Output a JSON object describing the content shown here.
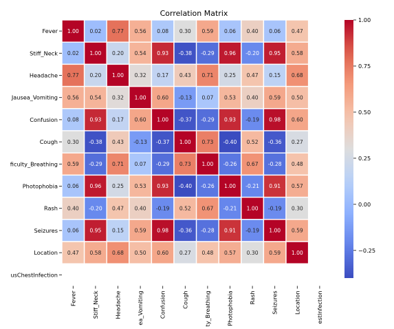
{
  "chart_data": {
    "type": "heatmap",
    "title": "Correlation Matrix",
    "rows": [
      "Fever",
      "Stiff_Neck",
      "Headache",
      "Nausea_Vomiting",
      "Confusion",
      "Cough",
      "Difficulty_Breathing",
      "Photophobia",
      "Rash",
      "Seizures",
      "Location",
      "ObviousChestInfection"
    ],
    "columns": [
      "Fever",
      "Stiff_Neck",
      "Headache",
      "Nausea_Vomiting",
      "Confusion",
      "Cough",
      "Difficulty_Breathing",
      "Photophobia",
      "Rash",
      "Seizures",
      "Location",
      "ObviousChestInfection"
    ],
    "row_labels_shown": [
      "Fever",
      "Stiff_Neck",
      "Headache",
      "Jausea_Vomiting",
      "Confusion",
      "Cough",
      "ficulty_Breathing",
      "Photophobia",
      "Rash",
      "Seizures",
      "Location",
      "usChestInfection"
    ],
    "column_labels_shown": [
      "Fever",
      "Stiff_Neck",
      "Headache",
      "ea_Vomiting",
      "Confusion",
      "Cough",
      "ty_Breathing",
      "Photophobia",
      "Rash",
      "Seizures",
      "Location",
      "estInfection"
    ],
    "values": [
      [
        1.0,
        0.02,
        0.77,
        0.56,
        0.08,
        0.3,
        0.59,
        0.06,
        0.4,
        0.06,
        0.47,
        null
      ],
      [
        0.02,
        1.0,
        0.2,
        0.54,
        0.93,
        -0.38,
        -0.29,
        0.96,
        -0.2,
        0.95,
        0.58,
        null
      ],
      [
        0.77,
        0.2,
        1.0,
        0.32,
        0.17,
        0.43,
        0.71,
        0.25,
        0.47,
        0.15,
        0.68,
        null
      ],
      [
        0.56,
        0.54,
        0.32,
        1.0,
        0.6,
        -0.13,
        0.07,
        0.53,
        0.4,
        0.59,
        0.5,
        null
      ],
      [
        0.08,
        0.93,
        0.17,
        0.6,
        1.0,
        -0.37,
        -0.29,
        0.93,
        -0.19,
        0.98,
        0.6,
        null
      ],
      [
        0.3,
        -0.38,
        0.43,
        -0.13,
        -0.37,
        1.0,
        0.73,
        -0.4,
        0.52,
        -0.36,
        0.27,
        null
      ],
      [
        0.59,
        -0.29,
        0.71,
        0.07,
        -0.29,
        0.73,
        1.0,
        -0.26,
        0.67,
        -0.28,
        0.48,
        null
      ],
      [
        0.06,
        0.96,
        0.25,
        0.53,
        0.93,
        -0.4,
        -0.26,
        1.0,
        -0.21,
        0.91,
        0.57,
        null
      ],
      [
        0.4,
        -0.2,
        0.47,
        0.4,
        -0.19,
        0.52,
        0.67,
        -0.21,
        1.0,
        -0.19,
        0.3,
        null
      ],
      [
        0.06,
        0.95,
        0.15,
        0.59,
        0.98,
        -0.36,
        -0.28,
        0.91,
        -0.19,
        1.0,
        0.59,
        null
      ],
      [
        0.47,
        0.58,
        0.68,
        0.5,
        0.6,
        0.27,
        0.48,
        0.57,
        0.3,
        0.59,
        1.0,
        null
      ],
      [
        null,
        null,
        null,
        null,
        null,
        null,
        null,
        null,
        null,
        null,
        null,
        null
      ]
    ],
    "value_format": "2 decimals",
    "colormap": "coolwarm",
    "vmin": -0.4,
    "vmax": 1.0,
    "colorbar": {
      "ticks": [
        1.0,
        0.75,
        0.5,
        0.25,
        0.0,
        -0.25
      ],
      "tick_labels": [
        "1.00",
        "0.75",
        "0.50",
        "0.25",
        "0.00",
        "−0.25"
      ],
      "placement": "right"
    },
    "cell_borders": "white",
    "annotations": true,
    "xlabel": "",
    "ylabel": ""
  }
}
